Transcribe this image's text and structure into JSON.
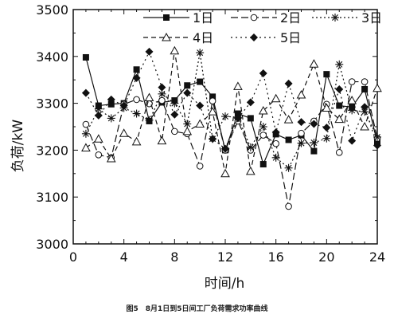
{
  "caption": "图5　8月1日到5日间工厂负荷需求功率曲线",
  "chart_data": {
    "type": "line",
    "xlabel": "时间/h",
    "ylabel": "负荷/kW",
    "xlim": [
      0,
      24
    ],
    "ylim": [
      3000,
      3500
    ],
    "xticks": [
      0,
      4,
      8,
      12,
      16,
      20,
      24
    ],
    "yticks": [
      3000,
      3100,
      3200,
      3300,
      3400,
      3500
    ],
    "legend_position": "top",
    "x": [
      1,
      2,
      3,
      4,
      5,
      6,
      7,
      8,
      9,
      10,
      11,
      12,
      13,
      14,
      15,
      16,
      17,
      18,
      19,
      20,
      21,
      22,
      23,
      24
    ],
    "series": [
      {
        "name": "1日",
        "dash": "solid",
        "marker": "square",
        "values": [
          3398,
          3295,
          3298,
          3300,
          3372,
          3262,
          3302,
          3306,
          3338,
          3346,
          3314,
          3200,
          3278,
          3268,
          3170,
          3234,
          3222,
          3232,
          3198,
          3362,
          3295,
          3292,
          3330,
          3216
        ]
      },
      {
        "name": "2日",
        "dash": "long",
        "marker": "circle",
        "values": [
          3255,
          3190,
          3184,
          3298,
          3308,
          3299,
          3306,
          3240,
          3235,
          3166,
          3305,
          3200,
          3262,
          3200,
          3232,
          3214,
          3080,
          3236,
          3262,
          3298,
          3195,
          3346,
          3346,
          3225
        ]
      },
      {
        "name": "3日",
        "dash": "dotted",
        "marker": "asterisk",
        "values": [
          3235,
          3288,
          3268,
          3290,
          3278,
          3264,
          3320,
          3300,
          3256,
          3408,
          3224,
          3272,
          3270,
          3206,
          3250,
          3184,
          3162,
          3215,
          3216,
          3225,
          3383,
          3285,
          3282,
          3228
        ]
      },
      {
        "name": "4日",
        "dash": "medium",
        "marker": "triangle",
        "values": [
          3205,
          3224,
          3182,
          3236,
          3218,
          3312,
          3220,
          3412,
          3240,
          3256,
          3282,
          3150,
          3336,
          3155,
          3284,
          3310,
          3265,
          3318,
          3384,
          3290,
          3266,
          3306,
          3250,
          3332
        ]
      },
      {
        "name": "5日",
        "dash": "dashdot",
        "marker": "diamond",
        "values": [
          3322,
          3274,
          3308,
          3295,
          3354,
          3410,
          3334,
          3276,
          3322,
          3295,
          3224,
          3203,
          3268,
          3302,
          3364,
          3238,
          3342,
          3260,
          3256,
          3248,
          3330,
          3220,
          3292,
          3210
        ]
      }
    ]
  }
}
